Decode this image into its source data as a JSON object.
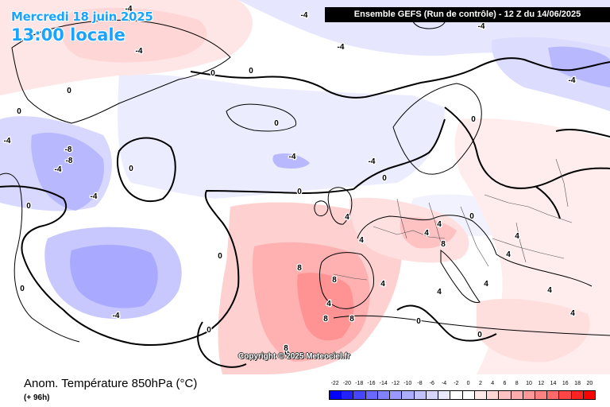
{
  "header": {
    "date": "Mercredi 18 juin 2025",
    "local_time": "13:00 locale",
    "model_run": "Ensemble GEFS  (Run de contrôle)  -  12 Z du 14/06/2025"
  },
  "copyright": "Copyright © 2025 Meteociel.fr",
  "footer": {
    "title": "Anom. Température 850hPa (°C)",
    "forecast_hour": "(+ 96h)"
  },
  "legend": {
    "ticks": [
      "-22",
      "-20",
      "-18",
      "-16",
      "-14",
      "-12",
      "-10",
      "-8",
      "-6",
      "-4",
      "-2",
      "0",
      "2",
      "4",
      "6",
      "8",
      "10",
      "12",
      "14",
      "16",
      "18",
      "20"
    ],
    "colors": [
      "#0000ff",
      "#2323ff",
      "#4646ff",
      "#6969ff",
      "#8282ff",
      "#9999ff",
      "#adadff",
      "#c2c2ff",
      "#d6d6ff",
      "#e8e8ff",
      "#ffffff",
      "#ffffff",
      "#ffe8e8",
      "#ffd6d6",
      "#ffc2c2",
      "#ffadad",
      "#ff9999",
      "#ff8282",
      "#ff6969",
      "#ff4646",
      "#ff2323",
      "#ff0000"
    ]
  },
  "contour_labels": [
    {
      "text": "-4"
    },
    {
      "text": "-4"
    },
    {
      "text": "-4"
    },
    {
      "text": "-4"
    },
    {
      "text": "-4"
    },
    {
      "text": "-4"
    },
    {
      "text": "0"
    },
    {
      "text": "0"
    },
    {
      "text": "0"
    },
    {
      "text": "0"
    },
    {
      "text": "0"
    },
    {
      "text": "0"
    },
    {
      "text": "-4"
    },
    {
      "text": "-8"
    },
    {
      "text": "-8"
    },
    {
      "text": "-4"
    },
    {
      "text": "-4"
    },
    {
      "text": "0"
    },
    {
      "text": "-4"
    },
    {
      "text": "-4"
    },
    {
      "text": "-4"
    },
    {
      "text": "0"
    },
    {
      "text": "0"
    },
    {
      "text": "0"
    },
    {
      "text": "0"
    },
    {
      "text": "-4"
    },
    {
      "text": "0"
    },
    {
      "text": "0"
    },
    {
      "text": "0"
    },
    {
      "text": "4"
    },
    {
      "text": "4"
    },
    {
      "text": "4"
    },
    {
      "text": "4"
    },
    {
      "text": "4"
    },
    {
      "text": "4"
    },
    {
      "text": "8"
    },
    {
      "text": "8"
    },
    {
      "text": "8"
    },
    {
      "text": "8"
    },
    {
      "text": "8"
    },
    {
      "text": "4"
    },
    {
      "text": "4"
    },
    {
      "text": "0"
    },
    {
      "text": "0"
    },
    {
      "text": "4"
    },
    {
      "text": "4"
    },
    {
      "text": "4"
    },
    {
      "text": "0"
    },
    {
      "text": "4"
    },
    {
      "text": "8"
    }
  ]
}
